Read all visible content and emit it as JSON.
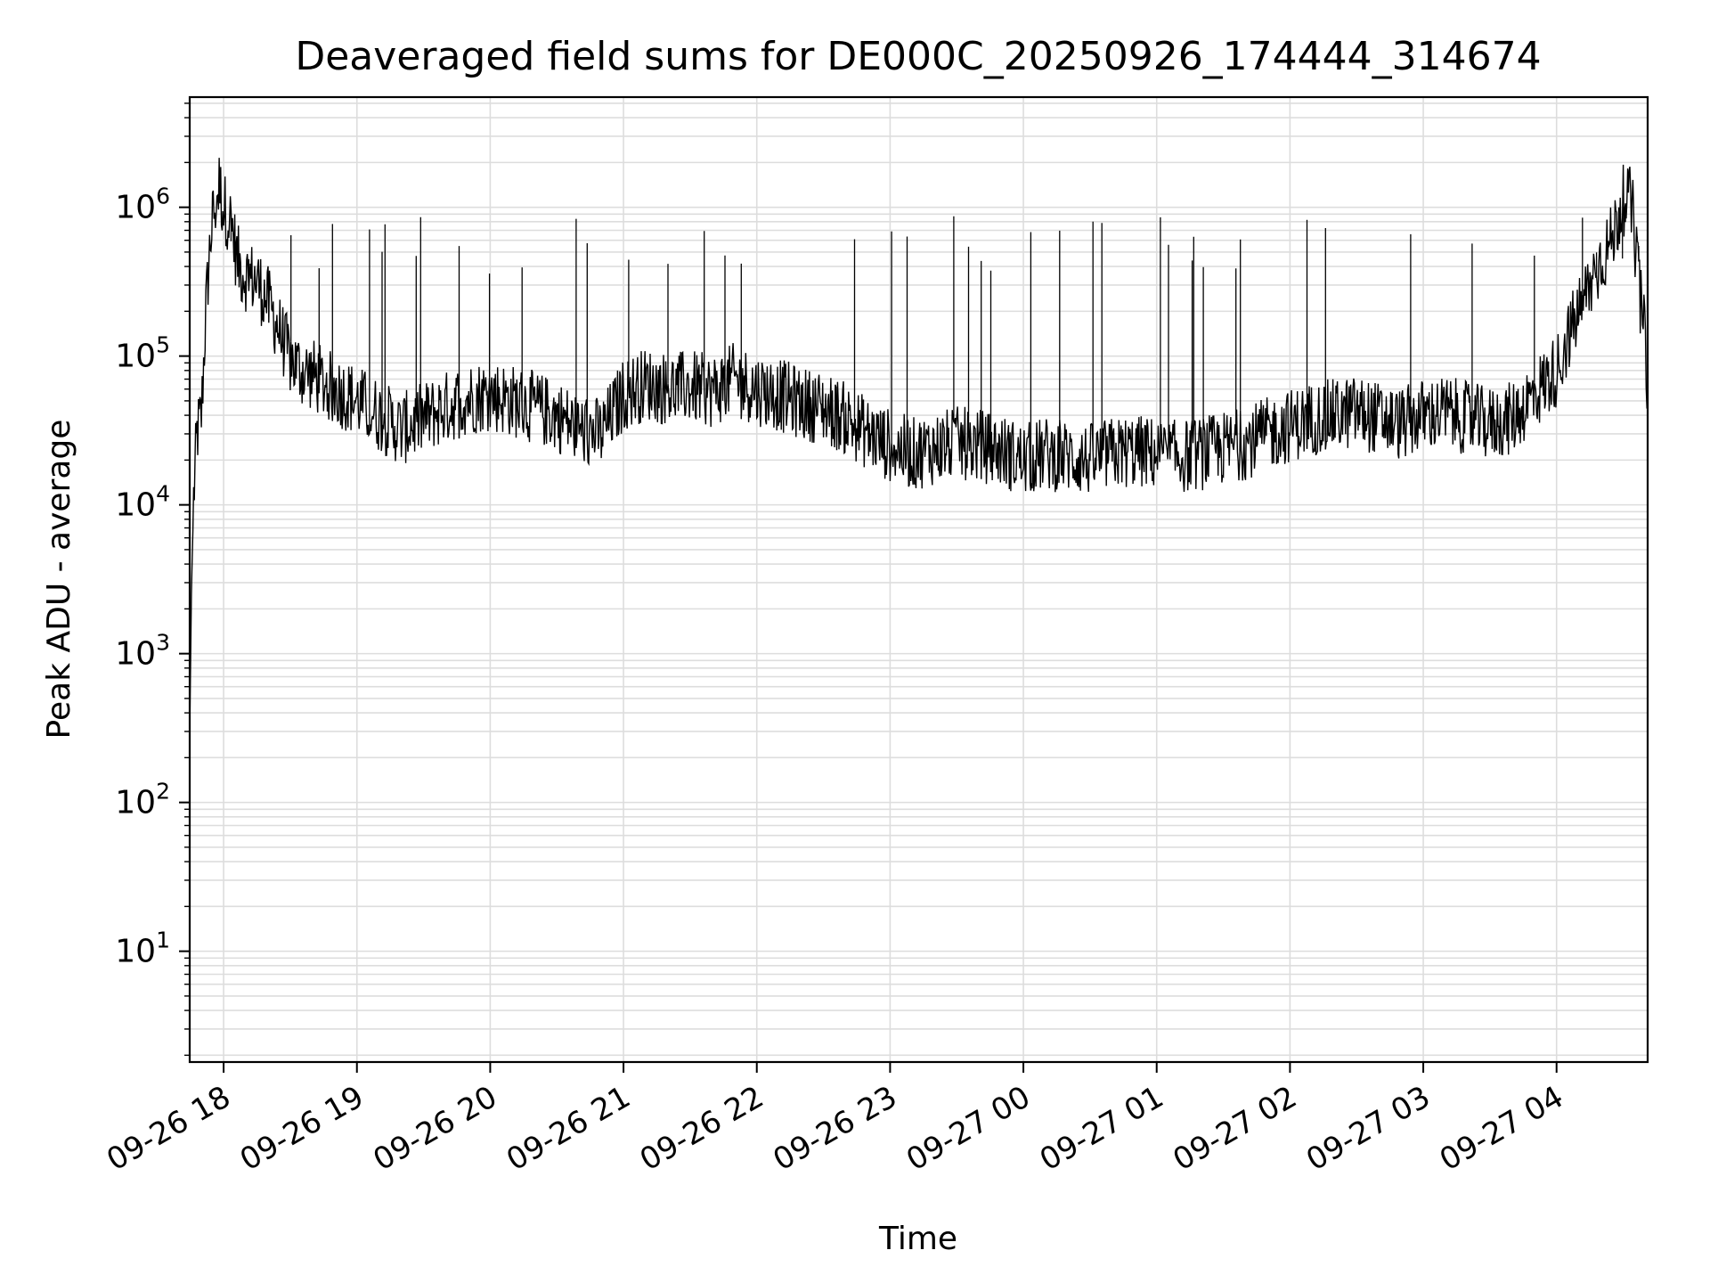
{
  "chart_data": {
    "type": "line",
    "title": "Deaveraged field sums for DE000C_20250926_174444_314674",
    "xlabel": "Time",
    "ylabel": "Peak ADU - average",
    "x_axis_type": "datetime",
    "x_range": [
      "2025-09-26 17:44:44",
      "2025-09-27 04:41:00"
    ],
    "x_ticks": [
      {
        "time": "2025-09-26 18:00",
        "label": "09-26 18"
      },
      {
        "time": "2025-09-26 19:00",
        "label": "09-26 19"
      },
      {
        "time": "2025-09-26 20:00",
        "label": "09-26 20"
      },
      {
        "time": "2025-09-26 21:00",
        "label": "09-26 21"
      },
      {
        "time": "2025-09-26 22:00",
        "label": "09-26 22"
      },
      {
        "time": "2025-09-26 23:00",
        "label": "09-26 23"
      },
      {
        "time": "2025-09-27 00:00",
        "label": "09-27 00"
      },
      {
        "time": "2025-09-27 01:00",
        "label": "09-27 01"
      },
      {
        "time": "2025-09-27 02:00",
        "label": "09-27 02"
      },
      {
        "time": "2025-09-27 03:00",
        "label": "09-27 03"
      },
      {
        "time": "2025-09-27 04:00",
        "label": "09-27 04"
      }
    ],
    "y_scale": "log",
    "ylim": [
      1.8,
      5500000
    ],
    "y_ticks": [
      {
        "value": 10,
        "base": "10",
        "exp": "1"
      },
      {
        "value": 100,
        "base": "10",
        "exp": "2"
      },
      {
        "value": 1000,
        "base": "10",
        "exp": "3"
      },
      {
        "value": 10000,
        "base": "10",
        "exp": "4"
      },
      {
        "value": 100000,
        "base": "10",
        "exp": "5"
      },
      {
        "value": 1000000,
        "base": "10",
        "exp": "6"
      }
    ],
    "grid": true,
    "series": [
      {
        "color": "#000000",
        "x": [
          "2025-09-26 17:44:44",
          "2025-09-26 17:45:30",
          "2025-09-26 17:46:30",
          "2025-09-26 17:48:00",
          "2025-09-26 17:50:00",
          "2025-09-26 17:52:00",
          "2025-09-26 17:54:00",
          "2025-09-26 17:56:00",
          "2025-09-26 17:58:00",
          "2025-09-26 18:00:00",
          "2025-09-26 18:02:00",
          "2025-09-26 18:04:00",
          "2025-09-26 18:06:00",
          "2025-09-26 18:08:00",
          "2025-09-26 18:10:00",
          "2025-09-26 18:15:00",
          "2025-09-26 18:20:00",
          "2025-09-26 18:25:00",
          "2025-09-26 18:30:00",
          "2025-09-26 18:35:00",
          "2025-09-26 18:40:00",
          "2025-09-26 18:45:00",
          "2025-09-26 18:50:00",
          "2025-09-26 18:55:00",
          "2025-09-26 19:00:00",
          "2025-09-26 19:10:00",
          "2025-09-26 19:20:00",
          "2025-09-26 19:30:00",
          "2025-09-26 19:40:00",
          "2025-09-26 19:50:00",
          "2025-09-26 20:00:00",
          "2025-09-26 20:10:00",
          "2025-09-26 20:20:00",
          "2025-09-26 20:30:00",
          "2025-09-26 20:40:00",
          "2025-09-26 20:50:00",
          "2025-09-26 21:00:00",
          "2025-09-26 21:10:00",
          "2025-09-26 21:20:00",
          "2025-09-26 21:30:00",
          "2025-09-26 21:40:00",
          "2025-09-26 21:50:00",
          "2025-09-26 22:00:00",
          "2025-09-26 22:10:00",
          "2025-09-26 22:20:00",
          "2025-09-26 22:30:00",
          "2025-09-26 22:40:00",
          "2025-09-26 22:50:00",
          "2025-09-26 23:00:00",
          "2025-09-26 23:10:00",
          "2025-09-26 23:20:00",
          "2025-09-26 23:30:00",
          "2025-09-26 23:40:00",
          "2025-09-26 23:50:00",
          "2025-09-27 00:00:00",
          "2025-09-27 00:10:00",
          "2025-09-27 00:20:00",
          "2025-09-27 00:30:00",
          "2025-09-27 00:40:00",
          "2025-09-27 00:50:00",
          "2025-09-27 01:00:00",
          "2025-09-27 01:10:00",
          "2025-09-27 01:20:00",
          "2025-09-27 01:30:00",
          "2025-09-27 01:40:00",
          "2025-09-27 01:50:00",
          "2025-09-27 02:00:00",
          "2025-09-27 02:10:00",
          "2025-09-27 02:20:00",
          "2025-09-27 02:30:00",
          "2025-09-27 02:40:00",
          "2025-09-27 02:50:00",
          "2025-09-27 03:00:00",
          "2025-09-27 03:10:00",
          "2025-09-27 03:20:00",
          "2025-09-27 03:30:00",
          "2025-09-27 03:40:00",
          "2025-09-27 03:50:00",
          "2025-09-27 04:00:00",
          "2025-09-27 04:05:00",
          "2025-09-27 04:10:00",
          "2025-09-27 04:15:00",
          "2025-09-27 04:20:00",
          "2025-09-27 04:25:00",
          "2025-09-27 04:28:00",
          "2025-09-27 04:31:00",
          "2025-09-27 04:34:00",
          "2025-09-27 04:37:00",
          "2025-09-27 04:40:00",
          "2025-09-27 04:41:00"
        ],
        "y": [
          300,
          2500,
          11000,
          30000,
          40000,
          200000,
          600000,
          1000000,
          1400000,
          1000000,
          900000,
          700000,
          450000,
          380000,
          350000,
          320000,
          230000,
          150000,
          95000,
          80000,
          75000,
          65000,
          60000,
          55000,
          50000,
          40000,
          32000,
          38000,
          45000,
          52000,
          55000,
          50000,
          45000,
          40000,
          32000,
          30000,
          55000,
          65000,
          60000,
          62000,
          58000,
          70000,
          60000,
          55000,
          48000,
          45000,
          38000,
          30000,
          25000,
          22000,
          24000,
          26000,
          25000,
          23000,
          20000,
          22000,
          21000,
          20000,
          22000,
          23000,
          22000,
          21000,
          22000,
          24000,
          26000,
          30000,
          34000,
          38000,
          40000,
          42000,
          38000,
          35000,
          40000,
          42000,
          38000,
          35000,
          38000,
          55000,
          80000,
          130000,
          200000,
          300000,
          450000,
          600000,
          900000,
          1200000,
          1000000,
          300000,
          120000,
          60000
        ]
      }
    ]
  }
}
